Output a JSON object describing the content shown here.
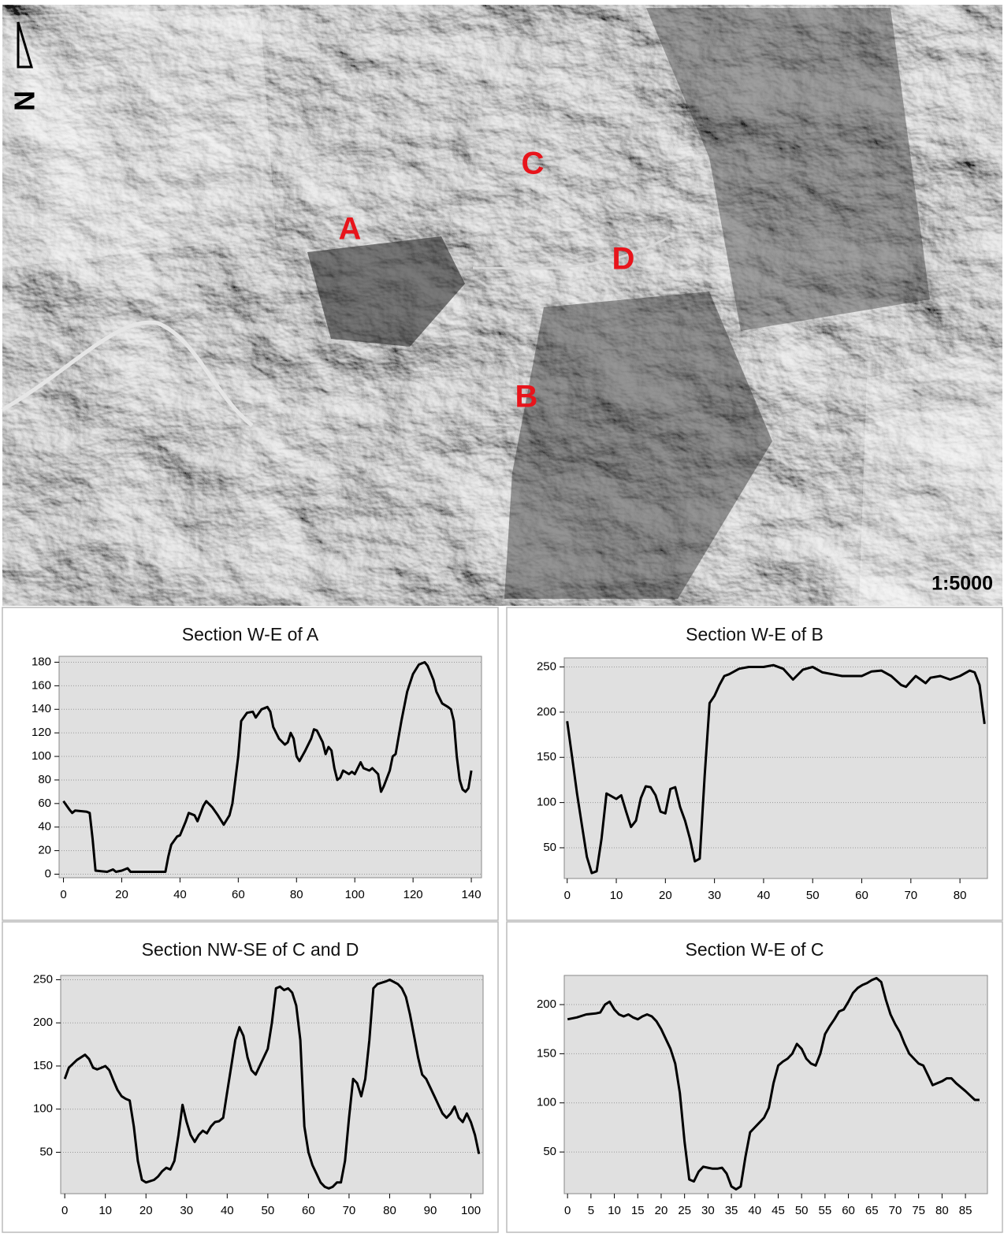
{
  "map": {
    "north": "N",
    "labels": [
      "A",
      "B",
      "C",
      "D"
    ],
    "scale": "1:5000"
  },
  "chart_data": [
    {
      "type": "line",
      "title": "Section W-E of A",
      "color": "#000000",
      "grid": true,
      "xlim": [
        -1.5,
        143.5
      ],
      "ylim": [
        -3,
        185
      ],
      "xticks": [
        0,
        20,
        40,
        60,
        80,
        100,
        120,
        140
      ],
      "yticks": [
        0,
        20,
        40,
        60,
        80,
        100,
        120,
        140,
        160,
        180
      ],
      "x": [
        0,
        2,
        3,
        4,
        8,
        9,
        10,
        11,
        15,
        17,
        18,
        20,
        22,
        23,
        30,
        35,
        36,
        37,
        39,
        40,
        42,
        43,
        45,
        46,
        48,
        49,
        51,
        53,
        55,
        57,
        58,
        60,
        61,
        63,
        65,
        66,
        68,
        70,
        71,
        72,
        74,
        76,
        77,
        78,
        79,
        80,
        81,
        83,
        85,
        86,
        87,
        89,
        90,
        91,
        92,
        93,
        94,
        95,
        96,
        98,
        99,
        100,
        102,
        103,
        105,
        106,
        108,
        109,
        110,
        112,
        113,
        114,
        116,
        118,
        120,
        122,
        124,
        125,
        127,
        128,
        130,
        132,
        133,
        134,
        135,
        136,
        137,
        138,
        139,
        140
      ],
      "values": [
        62,
        55,
        52,
        54,
        53,
        52,
        30,
        3,
        2,
        4,
        2,
        3,
        5,
        2,
        2,
        2,
        15,
        25,
        32,
        33,
        45,
        52,
        50,
        45,
        58,
        62,
        57,
        50,
        42,
        50,
        60,
        100,
        130,
        137,
        138,
        133,
        140,
        142,
        138,
        125,
        115,
        110,
        112,
        120,
        115,
        100,
        96,
        105,
        115,
        123,
        122,
        112,
        102,
        108,
        105,
        90,
        80,
        82,
        88,
        85,
        87,
        85,
        95,
        90,
        88,
        90,
        85,
        70,
        75,
        88,
        100,
        102,
        130,
        155,
        170,
        178,
        180,
        177,
        165,
        155,
        145,
        142,
        140,
        130,
        100,
        80,
        72,
        70,
        73,
        88
      ]
    },
    {
      "type": "line",
      "title": "Section W-E of B",
      "color": "#000000",
      "grid": true,
      "xlim": [
        -0.6,
        85.6
      ],
      "ylim": [
        16,
        260
      ],
      "xticks": [
        0,
        10,
        20,
        30,
        40,
        50,
        60,
        70,
        80
      ],
      "yticks": [
        50,
        100,
        150,
        200,
        250
      ],
      "x": [
        0,
        1,
        2,
        3,
        4,
        5,
        6,
        7,
        8,
        10,
        11,
        12,
        13,
        14,
        15,
        16,
        17,
        18,
        19,
        20,
        21,
        22,
        23,
        24,
        25,
        26,
        27,
        28,
        29,
        30,
        31,
        32,
        33,
        35,
        37,
        40,
        42,
        44,
        46,
        48,
        50,
        52,
        54,
        56,
        58,
        60,
        62,
        64,
        66,
        68,
        69,
        70,
        71,
        72,
        73,
        74,
        76,
        78,
        80,
        82,
        83,
        84,
        85
      ],
      "values": [
        190,
        150,
        110,
        75,
        40,
        22,
        24,
        60,
        110,
        104,
        108,
        90,
        73,
        80,
        105,
        118,
        117,
        108,
        90,
        88,
        115,
        117,
        95,
        80,
        60,
        35,
        38,
        130,
        210,
        218,
        230,
        240,
        242,
        248,
        250,
        250,
        252,
        248,
        236,
        247,
        250,
        244,
        242,
        240,
        240,
        240,
        245,
        246,
        240,
        230,
        228,
        234,
        240,
        236,
        232,
        238,
        240,
        236,
        240,
        246,
        244,
        230,
        187
      ]
    },
    {
      "type": "line",
      "title": "Section NW-SE of C and D",
      "color": "#000000",
      "grid": true,
      "xlim": [
        -1,
        103
      ],
      "ylim": [
        2,
        255
      ],
      "xticks": [
        0,
        10,
        20,
        30,
        40,
        50,
        60,
        70,
        80,
        90,
        100
      ],
      "yticks": [
        50,
        100,
        150,
        200,
        250
      ],
      "x": [
        0,
        1,
        3,
        5,
        6,
        7,
        8,
        9,
        10,
        11,
        12,
        13,
        14,
        15,
        16,
        17,
        18,
        19,
        20,
        22,
        23,
        24,
        25,
        26,
        27,
        28,
        29,
        30,
        31,
        32,
        33,
        34,
        35,
        36,
        37,
        38,
        39,
        40,
        41,
        42,
        43,
        44,
        45,
        46,
        47,
        48,
        49,
        50,
        51,
        52,
        53,
        54,
        55,
        56,
        57,
        58,
        59,
        60,
        61,
        62,
        63,
        64,
        65,
        66,
        67,
        68,
        69,
        70,
        71,
        72,
        73,
        74,
        75,
        76,
        77,
        79,
        80,
        82,
        83,
        84,
        85,
        86,
        87,
        88,
        89,
        90,
        91,
        92,
        93,
        94,
        95,
        96,
        97,
        98,
        99,
        100,
        101,
        102
      ],
      "values": [
        135,
        148,
        157,
        163,
        158,
        148,
        146,
        148,
        150,
        145,
        133,
        122,
        115,
        112,
        110,
        80,
        40,
        18,
        15,
        18,
        22,
        28,
        32,
        30,
        40,
        70,
        105,
        85,
        70,
        62,
        70,
        75,
        72,
        80,
        85,
        86,
        90,
        120,
        150,
        180,
        195,
        185,
        160,
        145,
        140,
        150,
        160,
        170,
        200,
        240,
        242,
        238,
        240,
        235,
        220,
        180,
        80,
        50,
        35,
        25,
        15,
        10,
        8,
        10,
        15,
        15,
        40,
        90,
        135,
        130,
        115,
        135,
        180,
        240,
        245,
        248,
        250,
        245,
        240,
        230,
        210,
        185,
        160,
        140,
        135,
        125,
        115,
        105,
        95,
        90,
        95,
        103,
        90,
        85,
        95,
        85,
        70,
        48
      ]
    },
    {
      "type": "line",
      "title": "Section W-E of C",
      "color": "#000000",
      "grid": true,
      "xlim": [
        -0.7,
        89.7
      ],
      "ylim": [
        7.6,
        229.7
      ],
      "xticks": [
        0,
        5,
        10,
        15,
        20,
        25,
        30,
        35,
        40,
        45,
        50,
        55,
        60,
        65,
        70,
        75,
        80,
        85
      ],
      "yticks": [
        50,
        100,
        150,
        200
      ],
      "x": [
        0,
        2,
        4,
        6,
        7,
        8,
        9,
        10,
        11,
        12,
        13,
        14,
        15,
        16,
        17,
        18,
        19,
        20,
        21,
        22,
        23,
        24,
        25,
        26,
        27,
        28,
        29,
        30,
        31,
        32,
        33,
        34,
        35,
        36,
        37,
        38,
        39,
        40,
        41,
        42,
        43,
        44,
        45,
        46,
        47,
        48,
        49,
        50,
        51,
        52,
        53,
        54,
        55,
        56,
        57,
        58,
        59,
        60,
        61,
        62,
        63,
        64,
        65,
        66,
        67,
        68,
        69,
        70,
        71,
        72,
        73,
        74,
        75,
        76,
        77,
        78,
        79,
        80,
        81,
        82,
        83,
        85,
        87,
        88
      ],
      "values": [
        185,
        187,
        190,
        191,
        192,
        200,
        203,
        195,
        190,
        188,
        190,
        187,
        185,
        188,
        190,
        188,
        183,
        175,
        165,
        155,
        140,
        110,
        60,
        22,
        20,
        30,
        35,
        34,
        33,
        33,
        34,
        28,
        15,
        12,
        15,
        45,
        70,
        75,
        80,
        85,
        95,
        120,
        138,
        142,
        145,
        150,
        160,
        155,
        145,
        140,
        138,
        150,
        170,
        178,
        185,
        193,
        195,
        203,
        212,
        217,
        220,
        222,
        225,
        227,
        223,
        205,
        190,
        180,
        172,
        160,
        150,
        145,
        140,
        138,
        128,
        118,
        120,
        122,
        125,
        125,
        120,
        112,
        103,
        103
      ]
    }
  ]
}
